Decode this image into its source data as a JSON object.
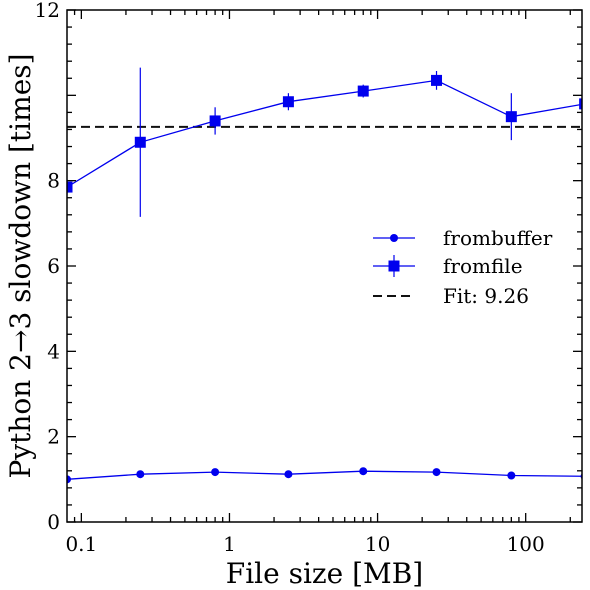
{
  "chart_data": {
    "type": "line",
    "xlabel": "File size [MB]",
    "ylabel": "Python 2→3 slowdown [times]",
    "xscale": "log",
    "xlim": [
      0.08,
      240
    ],
    "ylim": [
      0,
      12
    ],
    "grid": false,
    "legend_position": "center-right",
    "x_tick_labels": [
      "0.1",
      "1",
      "10",
      "100"
    ],
    "x_tick_values": [
      0.1,
      1,
      10,
      100
    ],
    "y_tick_labels": [
      "0",
      "2",
      "4",
      "6",
      "8",
      "12"
    ],
    "y_tick_values": [
      0,
      2,
      4,
      6,
      8,
      12
    ],
    "x": [
      0.08,
      0.25,
      0.8,
      2.5,
      8,
      25,
      80,
      250
    ],
    "series": [
      {
        "name": "frombuffer",
        "marker": "circle",
        "color": "#0000ee",
        "values": [
          1.0,
          1.12,
          1.17,
          1.12,
          1.19,
          1.17,
          1.09,
          1.07
        ]
      },
      {
        "name": "fromfile",
        "marker": "square",
        "color": "#0000ee",
        "values": [
          7.85,
          8.9,
          9.4,
          9.85,
          10.1,
          10.35,
          9.5,
          9.8
        ],
        "errors": [
          0.18,
          1.75,
          0.32,
          0.2,
          0.15,
          0.22,
          0.55,
          0.18
        ]
      }
    ],
    "fit": {
      "name": "Fit: 9.26",
      "value": 9.26,
      "style": "dashed",
      "color": "#111111"
    }
  }
}
